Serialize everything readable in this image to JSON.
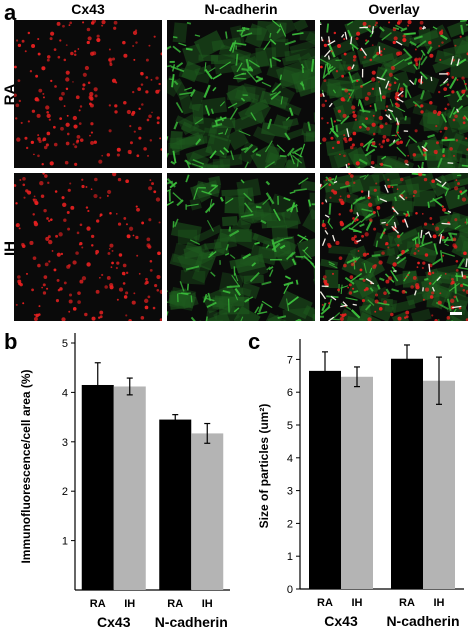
{
  "figure": {
    "panel_a_letter": "a",
    "panel_b_letter": "b",
    "panel_c_letter": "c",
    "columns": [
      "Cx43",
      "N-cadherin",
      "Overlay"
    ],
    "rows": [
      "RA",
      "IH"
    ],
    "channel_colors": {
      "cx43": "#e82020",
      "ncad": "#3cc03c",
      "overlay_coloc": "#f4f0e8"
    }
  },
  "chart_data": [
    {
      "type": "bar",
      "panel": "b",
      "ylabel": "Immunofluorescence/cell area (%)",
      "ylim": [
        0,
        5
      ],
      "yticks": [
        1,
        2,
        3,
        4,
        5
      ],
      "groups": [
        "Cx43",
        "N-cadherin"
      ],
      "categories": [
        "RA",
        "IH"
      ],
      "series": [
        {
          "name": "RA",
          "color": "#000000",
          "values": [
            4.15,
            3.45
          ],
          "errors": [
            0.45,
            0.1
          ]
        },
        {
          "name": "IH",
          "color": "#b4b4b4",
          "values": [
            4.12,
            3.17
          ],
          "errors": [
            0.17,
            0.2
          ]
        }
      ]
    },
    {
      "type": "bar",
      "panel": "c",
      "ylabel": "Size of particles (um²)",
      "ylim": [
        0,
        7.5
      ],
      "yticks": [
        0,
        1,
        2,
        3,
        4,
        5,
        6,
        7
      ],
      "groups": [
        "Cx43",
        "N-cadherin"
      ],
      "categories": [
        "RA",
        "IH"
      ],
      "series": [
        {
          "name": "RA",
          "color": "#000000",
          "values": [
            6.65,
            7.02
          ],
          "errors": [
            0.58,
            0.42
          ]
        },
        {
          "name": "IH",
          "color": "#b4b4b4",
          "values": [
            6.47,
            6.35
          ],
          "errors": [
            0.3,
            0.72
          ]
        }
      ]
    }
  ]
}
